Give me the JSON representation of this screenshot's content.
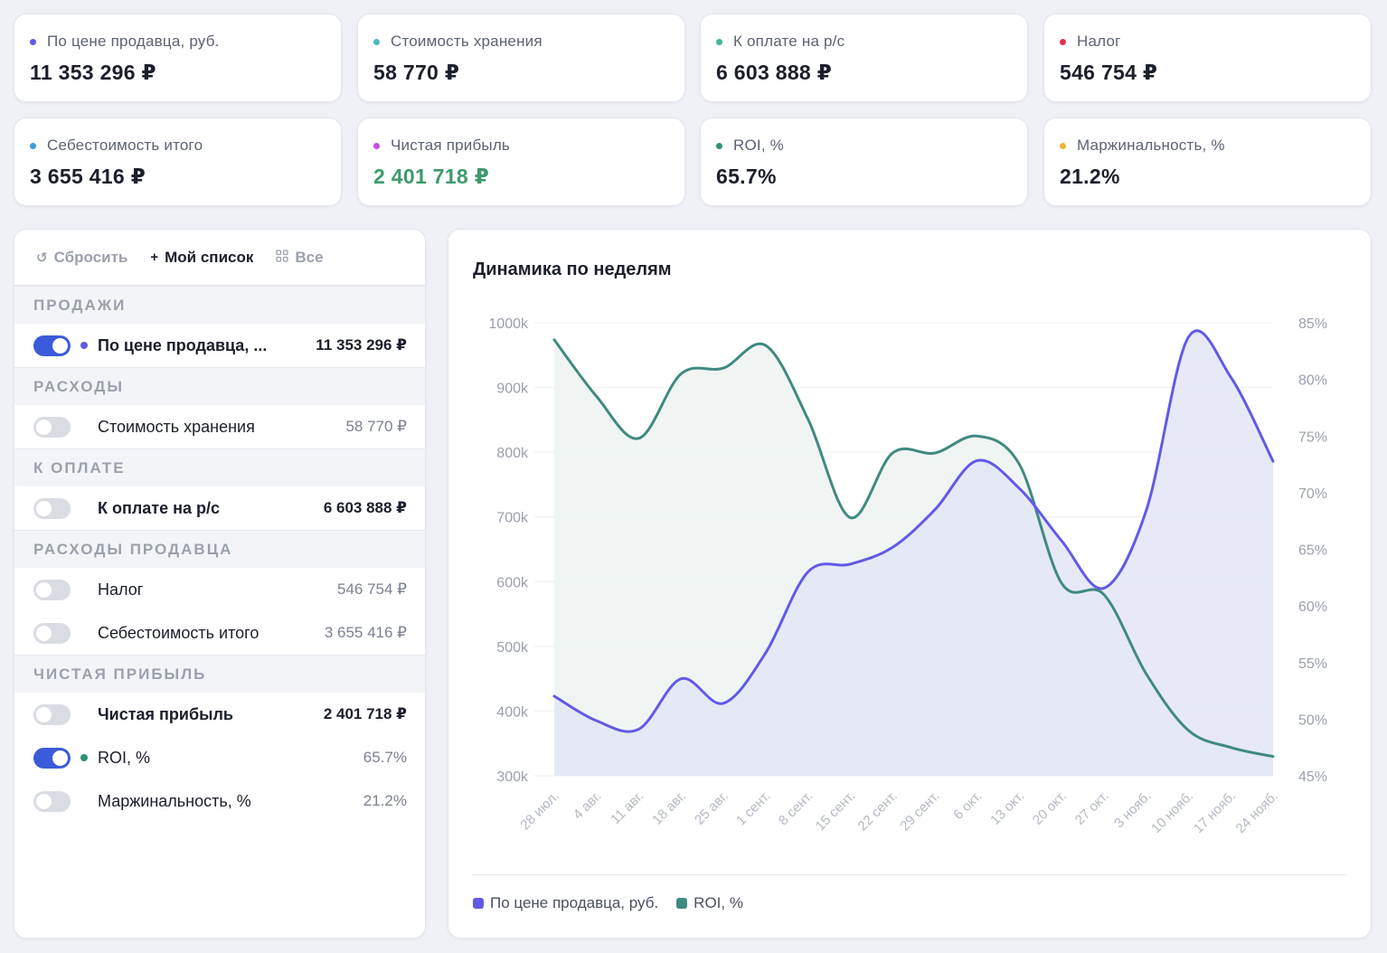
{
  "metrics": [
    {
      "label": "По цене продавца, руб.",
      "value": "11 353 296 ₽",
      "dot": "#6259e8",
      "valueColor": "#1b1f2b"
    },
    {
      "label": "Стоимость хранения",
      "value": "58 770 ₽",
      "dot": "#4bb6c9",
      "valueColor": "#1b1f2b"
    },
    {
      "label": "К оплате на р/с",
      "value": "6 603 888 ₽",
      "dot": "#3fb59a",
      "valueColor": "#1b1f2b"
    },
    {
      "label": "Налог",
      "value": "546 754 ₽",
      "dot": "#e0334f",
      "valueColor": "#1b1f2b"
    },
    {
      "label": "Себестоимость итого",
      "value": "3 655 416 ₽",
      "dot": "#3b9de0",
      "valueColor": "#1b1f2b"
    },
    {
      "label": "Чистая прибыль",
      "value": "2 401 718 ₽",
      "dot": "#c64be6",
      "valueColor": "#3d9a6a"
    },
    {
      "label": "ROI, %",
      "value": "65.7%",
      "dot": "#2f8f75",
      "valueColor": "#1b1f2b"
    },
    {
      "label": "Маржинальность, %",
      "value": "21.2%",
      "dot": "#e8b531",
      "valueColor": "#1b1f2b"
    }
  ],
  "toolbar": {
    "reset": "Сбросить",
    "my_list": "Мой список",
    "all": "Все"
  },
  "sections": [
    {
      "title": "ПРОДАЖИ",
      "rows": [
        {
          "label": "По цене продавца, ...",
          "value": "11 353 296 ₽",
          "on": true,
          "dot": "#6259e8",
          "bold": true
        }
      ]
    },
    {
      "title": "РАСХОДЫ",
      "rows": [
        {
          "label": "Стоимость хранения",
          "value": "58 770 ₽",
          "on": false,
          "bold": false
        }
      ]
    },
    {
      "title": "К ОПЛАТЕ",
      "rows": [
        {
          "label": "К оплате на р/с",
          "value": "6 603 888 ₽",
          "on": false,
          "bold": true
        }
      ]
    },
    {
      "title": "РАСХОДЫ ПРОДАВЦА",
      "rows": [
        {
          "label": "Налог",
          "value": "546 754 ₽",
          "on": false,
          "bold": false
        },
        {
          "label": "Себестоимость итого",
          "value": "3 655 416 ₽",
          "on": false,
          "bold": false
        }
      ]
    },
    {
      "title": "ЧИСТАЯ ПРИБЫЛЬ",
      "rows": [
        {
          "label": "Чистая прибыль",
          "value": "2 401 718 ₽",
          "on": false,
          "bold": true
        },
        {
          "label": "ROI, %",
          "value": "65.7%",
          "on": true,
          "dot": "#2f8f75",
          "bold": false
        },
        {
          "label": "Маржинальность, %",
          "value": "21.2%",
          "on": false,
          "bold": false
        }
      ]
    }
  ],
  "chart": {
    "title": "Динамика по неделям"
  },
  "chart_data": {
    "type": "line",
    "title": "Динамика по неделям",
    "categories": [
      "28 июл.",
      "4 авг.",
      "11 авг.",
      "18 авг.",
      "25 авг.",
      "1 сент.",
      "8 сент.",
      "15 сент.",
      "22 сент.",
      "29 сент.",
      "6 окт.",
      "13 окт.",
      "20 окт.",
      "27 окт.",
      "3 нояб.",
      "10 нояб.",
      "17 нояб.",
      "24 нояб."
    ],
    "y_left": {
      "ticks": [
        "300k",
        "400k",
        "500k",
        "600k",
        "700k",
        "800k",
        "900k",
        "1000k"
      ],
      "ylim": [
        300000,
        1000000
      ]
    },
    "y_right": {
      "ticks": [
        "45%",
        "50%",
        "55%",
        "60%",
        "65%",
        "70%",
        "75%",
        "80%",
        "85%"
      ],
      "ylim": [
        45,
        85
      ]
    },
    "series": [
      {
        "name": "По цене продавца, руб.",
        "axis": "left",
        "color": "#6259e8",
        "fill": "#e3e6f4",
        "values": [
          423000,
          385000,
          372000,
          450000,
          412000,
          490000,
          615000,
          627000,
          653000,
          711000,
          787000,
          744000,
          663000,
          590000,
          710000,
          978000,
          916000,
          786000
        ]
      },
      {
        "name": "ROI, %",
        "axis": "right",
        "color": "#3f8a80",
        "fill": "#edf3f2",
        "values": [
          83.5,
          78.5,
          74.8,
          80.5,
          81.0,
          83.0,
          76.5,
          67.8,
          73.5,
          73.5,
          75.0,
          72.5,
          62.0,
          61.0,
          54.0,
          49.0,
          47.5,
          46.7
        ]
      }
    ],
    "legend": "bottom-left",
    "grid": true
  }
}
